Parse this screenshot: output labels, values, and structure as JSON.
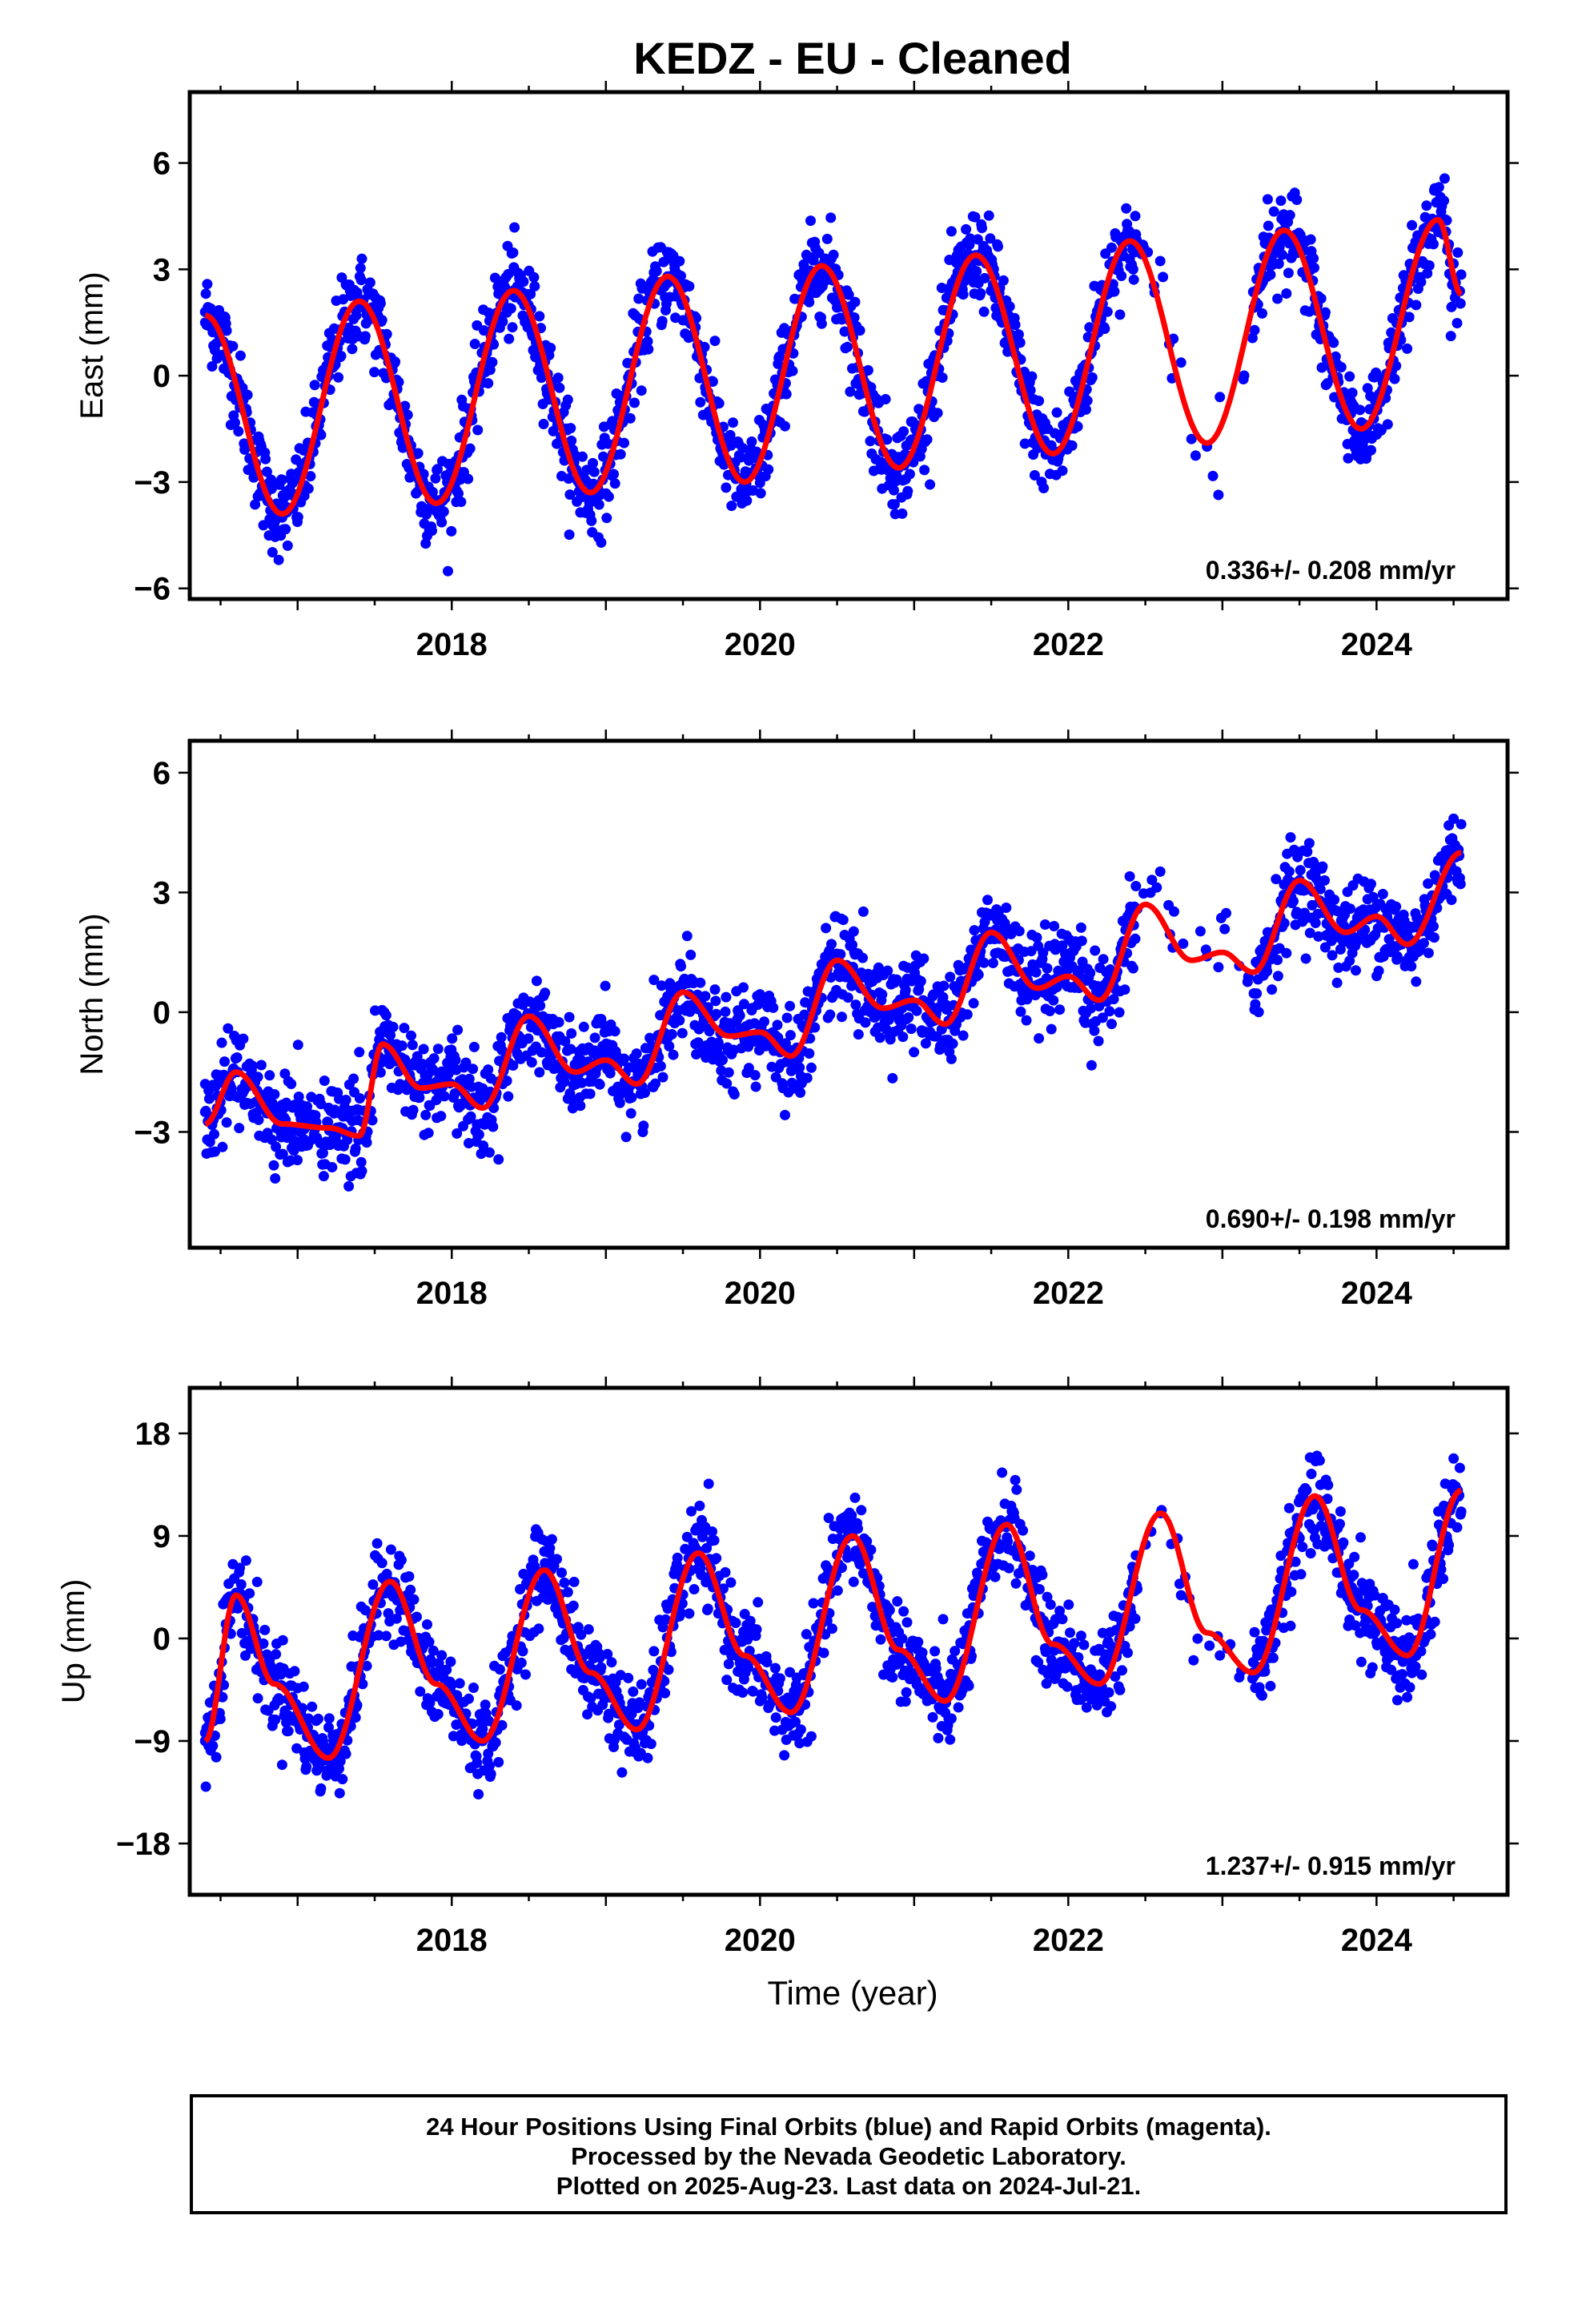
{
  "title": "KEDZ  - EU - Cleaned",
  "xlabel": "Time (year)",
  "footer": {
    "line1": "24 Hour Positions Using Final Orbits (blue) and Rapid Orbits (magenta).",
    "line2": "Processed by the Nevada Geodetic Laboratory.",
    "line3": "Plotted on 2025-Aug-23. Last data on 2024-Jul-21."
  },
  "colors": {
    "points": "#0000ff",
    "fit": "#ff0000",
    "frame": "#000000"
  },
  "chart_data": [
    {
      "type": "scatter",
      "ylabel": "East (mm)",
      "rate_label": "0.336+/- 0.208 mm/yr",
      "xlim": [
        2016.3,
        2024.85
      ],
      "ylim": [
        -6.3,
        8
      ],
      "yticks": [
        6,
        3,
        0,
        -3,
        -6
      ],
      "ytick_labels": [
        "6",
        "3",
        "0",
        "−3",
        "−6"
      ],
      "xticks": [
        2018,
        2020,
        2022,
        2024
      ],
      "xtick_labels": [
        "2018",
        "2020",
        "2022",
        "2024"
      ],
      "grid": false,
      "series": [
        {
          "x": [
            2016.4,
            2016.9,
            2017.4,
            2017.9,
            2018.4,
            2018.9,
            2019.4,
            2019.9,
            2020.4,
            2020.9,
            2021.4,
            2021.9,
            2022.4,
            2022.9,
            2023.4,
            2023.9,
            2024.4
          ],
          "y": [
            1.8,
            -4.0,
            2.1,
            -3.6,
            2.4,
            -3.3,
            2.8,
            -3.0,
            3.1,
            -2.6,
            3.4,
            -2.3,
            3.8,
            -2.0,
            4.1,
            -1.6,
            4.4
          ]
        }
      ],
      "fit_line": {
        "x": [
          2016.4,
          2016.9,
          2017.4,
          2017.9,
          2018.4,
          2018.9,
          2019.4,
          2019.9,
          2020.4,
          2020.9,
          2021.4,
          2021.9,
          2022.4,
          2022.9,
          2023.4,
          2023.9,
          2024.4,
          2024.55
        ],
        "y": [
          1.7,
          -3.9,
          2.1,
          -3.6,
          2.4,
          -3.3,
          2.8,
          -3.0,
          3.1,
          -2.6,
          3.4,
          -2.2,
          3.8,
          -1.9,
          4.1,
          -1.5,
          4.4,
          2.3
        ]
      }
    },
    {
      "type": "scatter",
      "ylabel": "North (mm)",
      "rate_label": "0.690+/- 0.198 mm/yr",
      "xlim": [
        2016.3,
        2024.85
      ],
      "ylim": [
        -5.9,
        6.8
      ],
      "yticks": [
        6,
        3,
        0,
        -3
      ],
      "ytick_labels": [
        "6",
        "3",
        "0",
        "−3"
      ],
      "xticks": [
        2018,
        2020,
        2022,
        2024
      ],
      "xtick_labels": [
        "2018",
        "2020",
        "2022",
        "2024"
      ],
      "grid": false,
      "series": [
        {
          "x": [
            2016.4,
            2016.9,
            2017.4,
            2017.9,
            2018.4,
            2018.9,
            2019.4,
            2019.9,
            2020.4,
            2020.9,
            2021.4,
            2021.9,
            2022.4,
            2022.9,
            2023.4,
            2023.9,
            2024.4
          ],
          "y": [
            -2.5,
            -2.8,
            -1.0,
            -2.2,
            -0.3,
            -1.5,
            0.4,
            -0.7,
            1.2,
            0.0,
            1.8,
            0.8,
            2.5,
            1.4,
            3.2,
            2.2,
            3.8
          ]
        }
      ],
      "fit_line": {
        "x": [
          2016.4,
          2016.6,
          2016.9,
          2017.2,
          2017.4,
          2017.55,
          2017.8,
          2018.0,
          2018.2,
          2018.5,
          2018.8,
          2019.0,
          2019.2,
          2019.5,
          2019.8,
          2020.0,
          2020.2,
          2020.5,
          2020.8,
          2021.0,
          2021.2,
          2021.5,
          2021.8,
          2022.0,
          2022.2,
          2022.5,
          2022.8,
          2023.0,
          2023.2,
          2023.5,
          2023.8,
          2024.0,
          2024.2,
          2024.55
        ],
        "y": [
          -2.8,
          -1.5,
          -2.8,
          -2.9,
          -3.1,
          -0.8,
          -1.9,
          -1.8,
          -2.4,
          -0.1,
          -1.5,
          -1.2,
          -1.8,
          0.5,
          -0.6,
          -0.5,
          -1.1,
          1.3,
          0.1,
          0.3,
          -0.3,
          2.0,
          0.6,
          0.9,
          0.3,
          2.7,
          1.3,
          1.5,
          1.0,
          3.3,
          2.0,
          2.4,
          1.7,
          4.0
        ]
      }
    },
    {
      "type": "scatter",
      "ylabel": "Up (mm)",
      "rate_label": "1.237+/- 0.915 mm/yr",
      "xlim": [
        2016.3,
        2024.85
      ],
      "ylim": [
        -22.5,
        22
      ],
      "yticks": [
        18,
        9,
        0,
        -9,
        -18
      ],
      "ytick_labels": [
        "18",
        "9",
        "0",
        "−9",
        "−18"
      ],
      "xticks": [
        2018,
        2020,
        2022,
        2024
      ],
      "xtick_labels": [
        "2018",
        "2020",
        "2022",
        "2024"
      ],
      "grid": false,
      "series": [
        {
          "x": [
            2016.4,
            2016.6,
            2017.2,
            2017.6,
            2018.2,
            2018.6,
            2019.2,
            2019.6,
            2020.2,
            2020.6,
            2021.2,
            2021.6,
            2022.2,
            2022.6,
            2023.2,
            2023.6,
            2024.2,
            2024.5
          ],
          "y": [
            -9,
            4,
            -10,
            5,
            -9,
            6,
            -8,
            7,
            -6,
            9,
            -5,
            10,
            -4,
            11,
            -3,
            12,
            -1,
            12
          ]
        }
      ],
      "fit_line": {
        "x": [
          2016.4,
          2016.6,
          2016.85,
          2017.2,
          2017.6,
          2017.9,
          2018.2,
          2018.6,
          2018.9,
          2019.2,
          2019.6,
          2019.9,
          2020.2,
          2020.6,
          2020.9,
          2021.2,
          2021.6,
          2021.9,
          2022.2,
          2022.6,
          2022.9,
          2023.2,
          2023.6,
          2023.9,
          2024.2,
          2024.55
        ],
        "y": [
          -9,
          3.8,
          -4,
          -10.5,
          5,
          -4,
          -9,
          6,
          -3,
          -8,
          7.5,
          -1.5,
          -6.5,
          9,
          -1,
          -5.5,
          10,
          -0.5,
          -4,
          11,
          0.5,
          -3,
          12.5,
          2.5,
          -1.5,
          13
        ]
      }
    }
  ]
}
